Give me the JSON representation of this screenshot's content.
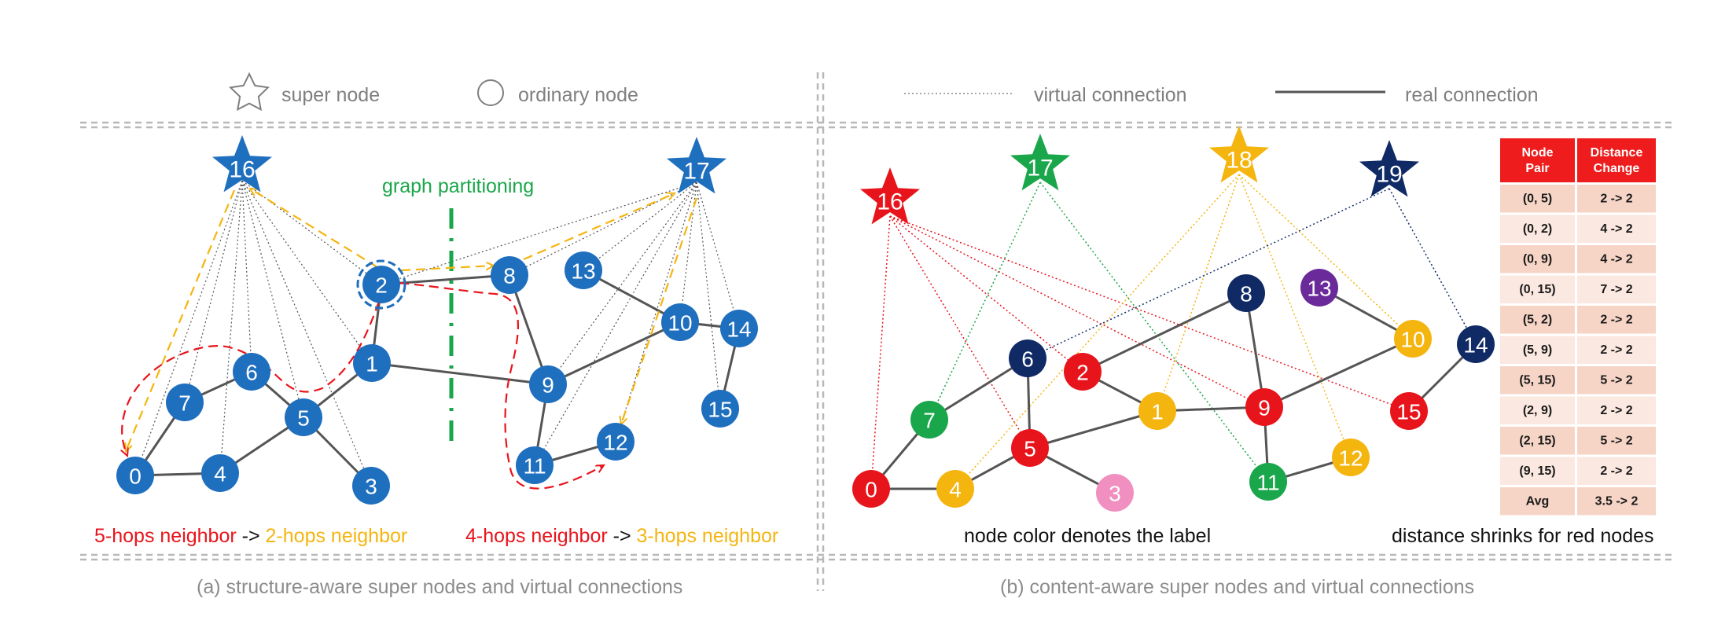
{
  "legend": {
    "super_node": "super node",
    "ordinary_node": "ordinary node",
    "virtual_connection": "virtual connection",
    "real_connection": "real connection"
  },
  "panel_a": {
    "caption": "(a) structure-aware super nodes and virtual connections",
    "partition_label": "graph partitioning",
    "node_color": "#1f6fbf",
    "super_nodes": [
      "16",
      "17"
    ],
    "nodes": [
      "0",
      "1",
      "2",
      "3",
      "4",
      "5",
      "6",
      "7",
      "8",
      "9",
      "10",
      "11",
      "12",
      "13",
      "14",
      "15"
    ],
    "left_note": {
      "from": "5-hops neighbor",
      "arrow": " -> ",
      "to": "2-hops neighbor"
    },
    "right_note": {
      "from": "4-hops neighbor",
      "arrow": " -> ",
      "to": "3-hops neighbor"
    }
  },
  "panel_b": {
    "caption": "(b) content-aware super nodes and virtual connections",
    "color_note": "node color denotes the label",
    "distance_note": "distance shrinks for red nodes",
    "super_nodes": [
      {
        "label": "16",
        "color": "#e8141c"
      },
      {
        "label": "17",
        "color": "#1aa64a"
      },
      {
        "label": "18",
        "color": "#f5b50f"
      },
      {
        "label": "19",
        "color": "#102a66"
      }
    ],
    "node_colors": {
      "0": "#e8141c",
      "1": "#f5b50f",
      "2": "#e8141c",
      "3": "#f08fc0",
      "4": "#f5b50f",
      "5": "#e8141c",
      "6": "#102a66",
      "7": "#1aa64a",
      "8": "#102a66",
      "9": "#e8141c",
      "10": "#f5b50f",
      "11": "#1aa64a",
      "12": "#f5b50f",
      "13": "#6a2a9a",
      "14": "#102a66",
      "15": "#e8141c"
    },
    "table": {
      "header": [
        "Node Pair",
        "Distance Change"
      ],
      "rows": [
        [
          "(0, 5)",
          "2 -> 2"
        ],
        [
          "(0, 2)",
          "4 -> 2"
        ],
        [
          "(0, 9)",
          "4 -> 2"
        ],
        [
          "(0, 15)",
          "7 -> 2"
        ],
        [
          "(5, 2)",
          "2 -> 2"
        ],
        [
          "(5, 9)",
          "2 -> 2"
        ],
        [
          "(5, 15)",
          "5 -> 2"
        ],
        [
          "(2, 9)",
          "2 -> 2"
        ],
        [
          "(2, 15)",
          "5 -> 2"
        ],
        [
          "(9, 15)",
          "2 -> 2"
        ],
        [
          "Avg",
          "3.5 -> 2"
        ]
      ]
    }
  },
  "colors": {
    "red": "#e8141c",
    "orange": "#f5b50f",
    "partition_green": "#1aa64a",
    "edge": "#555555",
    "dashed_border": "#b8b8b8",
    "table_header": "#ee1c1c",
    "table_row_dark": "#f6d5c6",
    "table_row_light": "#fbe8e0"
  }
}
